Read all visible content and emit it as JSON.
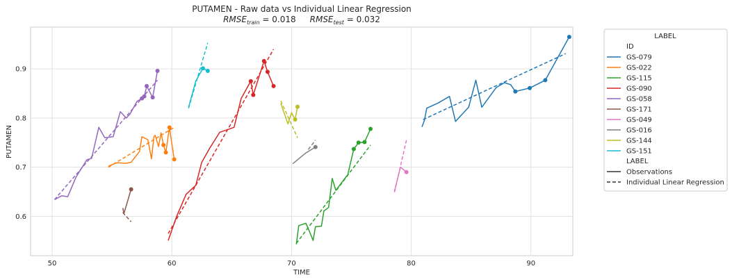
{
  "chart_data": {
    "type": "line",
    "title": "PUTAMEN - Raw data vs Individual Linear Regression",
    "subtitle": {
      "train_prefix": "RMSE",
      "train_sub": "train",
      "train_value": " = 0.018",
      "test_prefix": "RMSE",
      "test_sub": "test",
      "test_value": " = 0.032"
    },
    "xlabel": "TIME",
    "ylabel": "PUTAMEN",
    "xlim": [
      48.2,
      93.5
    ],
    "ylim": [
      0.52,
      0.985
    ],
    "xticks": [
      50,
      60,
      70,
      80,
      90
    ],
    "yticks": [
      0.6,
      0.7,
      0.8,
      0.9
    ],
    "grid": true,
    "legend": {
      "placement": "outside-right",
      "title": "LABEL",
      "id_header": "ID",
      "label_header": "LABEL",
      "style_entries": [
        {
          "name": "Observations",
          "style": "solid"
        },
        {
          "name": "Individual Linear Regression",
          "style": "dashed"
        }
      ]
    },
    "series": [
      {
        "name": "GS-079",
        "color": "#1f77b4",
        "observations": [
          [
            80.9,
            0.782
          ],
          [
            81.1,
            0.795
          ],
          [
            81.3,
            0.82
          ],
          [
            82.2,
            0.83
          ],
          [
            83.2,
            0.844
          ],
          [
            83.7,
            0.793
          ],
          [
            84.8,
            0.822
          ],
          [
            85.4,
            0.877
          ],
          [
            85.9,
            0.822
          ],
          [
            87.1,
            0.862
          ],
          [
            87.8,
            0.872
          ],
          [
            88.3,
            0.868
          ],
          [
            88.7,
            0.854
          ],
          [
            89.9,
            0.861
          ],
          [
            91.2,
            0.877
          ],
          [
            93.2,
            0.965
          ]
        ],
        "highlighted": [
          [
            88.7,
            0.854
          ],
          [
            89.9,
            0.861
          ],
          [
            91.2,
            0.877
          ],
          [
            93.2,
            0.965
          ]
        ],
        "regression": [
          [
            81.0,
            0.797
          ],
          [
            92.9,
            0.931
          ]
        ]
      },
      {
        "name": "GS-022",
        "color": "#ff7f0e",
        "observations": [
          [
            54.7,
            0.702
          ],
          [
            55.4,
            0.709
          ],
          [
            56.2,
            0.708
          ],
          [
            56.6,
            0.71
          ],
          [
            57.3,
            0.732
          ],
          [
            57.5,
            0.762
          ],
          [
            58.0,
            0.756
          ],
          [
            58.3,
            0.717
          ],
          [
            58.5,
            0.762
          ],
          [
            58.6,
            0.765
          ],
          [
            58.9,
            0.742
          ],
          [
            59.1,
            0.77
          ],
          [
            59.3,
            0.745
          ],
          [
            59.5,
            0.73
          ],
          [
            59.8,
            0.781
          ],
          [
            60.2,
            0.716
          ]
        ],
        "highlighted": [
          [
            59.3,
            0.745
          ],
          [
            59.5,
            0.73
          ],
          [
            59.8,
            0.781
          ],
          [
            60.2,
            0.716
          ]
        ],
        "regression": [
          [
            54.7,
            0.7
          ],
          [
            60.2,
            0.781
          ]
        ]
      },
      {
        "name": "GS-115",
        "color": "#2ca02c",
        "observations": [
          [
            70.4,
            0.543
          ],
          [
            70.6,
            0.581
          ],
          [
            71.2,
            0.586
          ],
          [
            71.5,
            0.569
          ],
          [
            71.8,
            0.551
          ],
          [
            72.0,
            0.579
          ],
          [
            72.5,
            0.58
          ],
          [
            72.7,
            0.611
          ],
          [
            73.1,
            0.618
          ],
          [
            73.4,
            0.677
          ],
          [
            73.7,
            0.653
          ],
          [
            74.7,
            0.685
          ],
          [
            75.2,
            0.737
          ],
          [
            75.6,
            0.75
          ],
          [
            76.1,
            0.751
          ],
          [
            76.6,
            0.778
          ]
        ],
        "highlighted": [
          [
            75.2,
            0.737
          ],
          [
            75.6,
            0.75
          ],
          [
            76.1,
            0.751
          ],
          [
            76.6,
            0.778
          ]
        ],
        "regression": [
          [
            70.4,
            0.545
          ],
          [
            76.6,
            0.745
          ]
        ]
      },
      {
        "name": "GS-090",
        "color": "#d62728",
        "observations": [
          [
            59.7,
            0.551
          ],
          [
            60.4,
            0.6
          ],
          [
            61.2,
            0.645
          ],
          [
            62.0,
            0.663
          ],
          [
            62.5,
            0.71
          ],
          [
            63.2,
            0.74
          ],
          [
            64.0,
            0.771
          ],
          [
            65.2,
            0.781
          ],
          [
            65.8,
            0.84
          ],
          [
            66.6,
            0.875
          ],
          [
            66.8,
            0.847
          ],
          [
            67.7,
            0.916
          ],
          [
            68.0,
            0.894
          ],
          [
            68.5,
            0.865
          ]
        ],
        "highlighted": [
          [
            66.6,
            0.875
          ],
          [
            66.8,
            0.847
          ],
          [
            67.7,
            0.916
          ],
          [
            68.0,
            0.894
          ],
          [
            68.5,
            0.865
          ]
        ],
        "regression": [
          [
            59.7,
            0.565
          ],
          [
            68.5,
            0.94
          ]
        ]
      },
      {
        "name": "GS-058",
        "color": "#9467bd",
        "observations": [
          [
            50.2,
            0.634
          ],
          [
            50.8,
            0.642
          ],
          [
            51.3,
            0.64
          ],
          [
            52.0,
            0.68
          ],
          [
            52.9,
            0.715
          ],
          [
            53.3,
            0.718
          ],
          [
            53.9,
            0.781
          ],
          [
            54.4,
            0.76
          ],
          [
            55.1,
            0.762
          ],
          [
            55.7,
            0.813
          ],
          [
            56.2,
            0.8
          ],
          [
            56.5,
            0.808
          ],
          [
            57.1,
            0.834
          ],
          [
            57.5,
            0.84
          ],
          [
            57.7,
            0.844
          ],
          [
            57.9,
            0.865
          ],
          [
            58.4,
            0.842
          ],
          [
            58.8,
            0.896
          ]
        ],
        "highlighted": [
          [
            57.5,
            0.84
          ],
          [
            57.7,
            0.844
          ],
          [
            57.9,
            0.865
          ],
          [
            58.4,
            0.842
          ],
          [
            58.8,
            0.896
          ]
        ],
        "regression": [
          [
            50.2,
            0.634
          ],
          [
            58.8,
            0.877
          ]
        ]
      },
      {
        "name": "GS-171",
        "color": "#8c564b",
        "observations": [
          [
            55.9,
            0.617
          ],
          [
            56.0,
            0.606
          ],
          [
            56.6,
            0.655
          ]
        ],
        "highlighted": [
          [
            56.6,
            0.655
          ]
        ],
        "regression": [
          [
            55.9,
            0.608
          ],
          [
            56.6,
            0.589
          ]
        ]
      },
      {
        "name": "GS-049",
        "color": "#e377c2",
        "observations": [
          [
            78.6,
            0.651
          ],
          [
            79.1,
            0.7
          ],
          [
            79.6,
            0.69
          ]
        ],
        "highlighted": [
          [
            79.6,
            0.69
          ]
        ],
        "regression": [
          [
            78.6,
            0.649
          ],
          [
            79.6,
            0.755
          ]
        ]
      },
      {
        "name": "GS-016",
        "color": "#7f7f7f",
        "observations": [
          [
            70.1,
            0.707
          ],
          [
            71.2,
            0.729
          ],
          [
            72.0,
            0.741
          ]
        ],
        "highlighted": [
          [
            72.0,
            0.741
          ]
        ],
        "regression": [
          [
            71.4,
            0.736
          ],
          [
            72.0,
            0.755
          ]
        ]
      },
      {
        "name": "GS-144",
        "color": "#bcbd22",
        "observations": [
          [
            69.1,
            0.83
          ],
          [
            69.7,
            0.788
          ],
          [
            70.0,
            0.811
          ],
          [
            70.3,
            0.797
          ],
          [
            70.5,
            0.823
          ]
        ],
        "highlighted": [
          [
            70.3,
            0.797
          ],
          [
            70.5,
            0.823
          ]
        ],
        "regression": [
          [
            69.1,
            0.835
          ],
          [
            70.5,
            0.76
          ]
        ]
      },
      {
        "name": "GS-151",
        "color": "#17becf",
        "observations": [
          [
            61.4,
            0.822
          ],
          [
            62.0,
            0.875
          ],
          [
            62.6,
            0.901
          ],
          [
            63.0,
            0.896
          ]
        ],
        "highlighted": [
          [
            62.6,
            0.901
          ],
          [
            63.0,
            0.896
          ]
        ],
        "regression": [
          [
            61.4,
            0.82
          ],
          [
            63.0,
            0.953
          ]
        ]
      }
    ]
  }
}
